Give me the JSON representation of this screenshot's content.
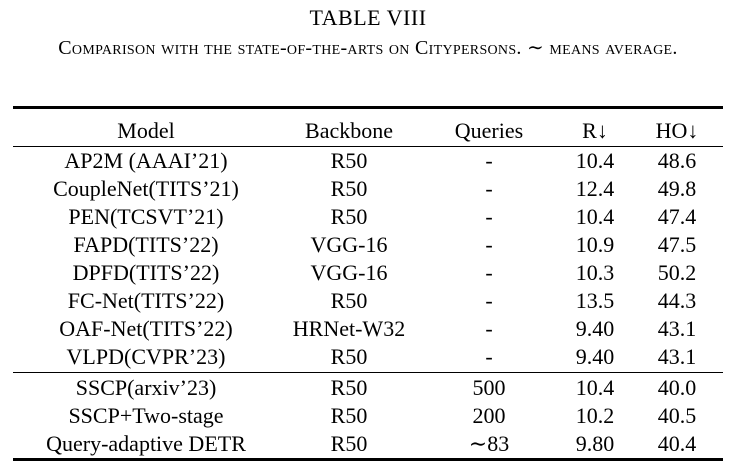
{
  "caption": {
    "table_label": "TABLE VIII",
    "text": "Comparison with the state-of-the-arts on Citypersons. ∼ means average."
  },
  "table": {
    "headers": {
      "model": "Model",
      "backbone": "Backbone",
      "queries": "Queries",
      "r": "R↓",
      "ho": "HO↓"
    },
    "group1": [
      {
        "model": "AP2M (AAAI’21)",
        "backbone": "R50",
        "queries": "-",
        "r": "10.4",
        "ho": "48.6"
      },
      {
        "model": "CoupleNet(TITS’21)",
        "backbone": "R50",
        "queries": "-",
        "r": "12.4",
        "ho": "49.8"
      },
      {
        "model": "PEN(TCSVT’21)",
        "backbone": "R50",
        "queries": "-",
        "r": "10.4",
        "ho": "47.4"
      },
      {
        "model": "FAPD(TITS’22)",
        "backbone": "VGG-16",
        "queries": "-",
        "r": "10.9",
        "ho": "47.5"
      },
      {
        "model": "DPFD(TITS’22)",
        "backbone": "VGG-16",
        "queries": "-",
        "r": "10.3",
        "ho": "50.2"
      },
      {
        "model": "FC-Net(TITS’22)",
        "backbone": "R50",
        "queries": "-",
        "r": "13.5",
        "ho": "44.3"
      },
      {
        "model": "OAF-Net(TITS’22)",
        "backbone": "HRNet-W32",
        "queries": "-",
        "r": "9.40",
        "ho": "43.1"
      },
      {
        "model": "VLPD(CVPR’23)",
        "backbone": "R50",
        "queries": "-",
        "r": "9.40",
        "ho": "43.1"
      }
    ],
    "group2": [
      {
        "model": "SSCP(arxiv’23)",
        "backbone": "R50",
        "queries": "500",
        "r": "10.4",
        "ho": "40.0"
      },
      {
        "model": "SSCP+Two-stage",
        "backbone": "R50",
        "queries": "200",
        "r": "10.2",
        "ho": "40.5"
      },
      {
        "model": "Query-adaptive DETR",
        "backbone": "R50",
        "queries": "∼83",
        "r": "9.80",
        "ho": "40.4"
      }
    ]
  }
}
